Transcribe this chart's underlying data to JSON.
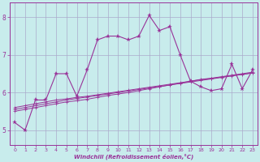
{
  "xlabel": "Windchill (Refroidissement éolien,°C)",
  "background_color": "#c8ecec",
  "grid_color": "#aaaacc",
  "line_color": "#993399",
  "xlim": [
    -0.5,
    23.5
  ],
  "ylim": [
    4.6,
    8.4
  ],
  "yticks": [
    5,
    6,
    7,
    8
  ],
  "xticks": [
    0,
    1,
    2,
    3,
    4,
    5,
    6,
    7,
    8,
    9,
    10,
    11,
    12,
    13,
    14,
    15,
    16,
    17,
    18,
    19,
    20,
    21,
    22,
    23
  ],
  "series_main": [
    5.2,
    5.0,
    5.8,
    5.8,
    6.5,
    6.5,
    5.9,
    6.6,
    7.4,
    7.5,
    7.5,
    7.4,
    7.5,
    8.05,
    7.65,
    7.75,
    7.0,
    6.3,
    6.15,
    6.05,
    6.1,
    6.75,
    6.1,
    6.6
  ],
  "series_reg1": [
    5.5,
    5.55,
    5.6,
    5.65,
    5.7,
    5.75,
    5.78,
    5.82,
    5.87,
    5.92,
    5.96,
    6.0,
    6.05,
    6.1,
    6.15,
    6.2,
    6.25,
    6.3,
    6.35,
    6.38,
    6.42,
    6.46,
    6.5,
    6.54
  ],
  "series_reg2": [
    5.55,
    5.6,
    5.65,
    5.7,
    5.75,
    5.8,
    5.84,
    5.88,
    5.92,
    5.96,
    6.0,
    6.04,
    6.08,
    6.12,
    6.16,
    6.2,
    6.24,
    6.28,
    6.32,
    6.36,
    6.4,
    6.44,
    6.48,
    6.52
  ],
  "series_reg3": [
    5.6,
    5.65,
    5.7,
    5.75,
    5.8,
    5.83,
    5.87,
    5.9,
    5.94,
    5.98,
    6.02,
    6.06,
    6.1,
    6.14,
    6.18,
    6.22,
    6.26,
    6.3,
    6.34,
    6.37,
    6.41,
    6.45,
    6.48,
    6.52
  ]
}
